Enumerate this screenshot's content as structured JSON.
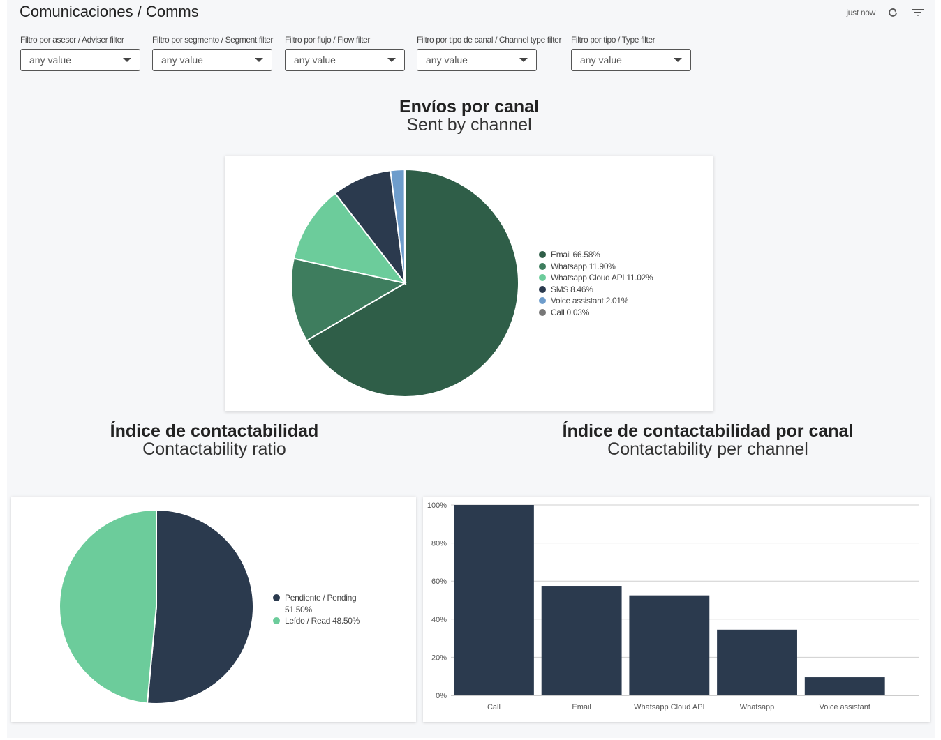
{
  "header": {
    "title": "Comunicaciones / Comms",
    "updated": "just now",
    "refresh_icon": "refresh-icon",
    "filter_icon": "filter-list-icon"
  },
  "filters": [
    {
      "label": "Filtro por asesor / Adviser filter",
      "value": "any value"
    },
    {
      "label": "Filtro por segmento / Segment filter",
      "value": "any value"
    },
    {
      "label": "Filtro por flujo / Flow filter",
      "value": "any value"
    },
    {
      "label": "Filtro por tipo de canal / Channel type filter",
      "value": "any value"
    },
    {
      "label": "Filtro por tipo / Type filter",
      "value": "any value"
    }
  ],
  "sections": {
    "sent": {
      "title": "Envíos por canal",
      "subtitle": "Sent by channel"
    },
    "ratio": {
      "title": "Índice de contactabilidad",
      "subtitle": "Contactability ratio"
    },
    "per_channel": {
      "title": "Índice de contactabilidad por canal",
      "subtitle": "Contactability per channel"
    }
  },
  "chart_data": [
    {
      "type": "pie",
      "slices": [
        {
          "label": "Email 66.58%",
          "value": 66.58,
          "color": "#2f5e48"
        },
        {
          "label": "Whatsapp 11.90%",
          "value": 11.9,
          "color": "#3e7d5e"
        },
        {
          "label": "Whatsapp Cloud API 11.02%",
          "value": 11.02,
          "color": "#6ccc9b"
        },
        {
          "label": "SMS 8.46%",
          "value": 8.46,
          "color": "#2b3a4e"
        },
        {
          "label": "Voice assistant 2.01%",
          "value": 2.01,
          "color": "#6e9dcc"
        },
        {
          "label": "Call 0.03%",
          "value": 0.03,
          "color": "#777777"
        }
      ],
      "legend_position": "right"
    },
    {
      "type": "pie",
      "slices": [
        {
          "label": "Pendiente / Pending 51.50%",
          "value": 51.5,
          "color": "#2b3a4e"
        },
        {
          "label": "Leído / Read 48.50%",
          "value": 48.5,
          "color": "#6ccc9b"
        }
      ],
      "legend_position": "right"
    },
    {
      "type": "bar",
      "categories": [
        "Call",
        "Email",
        "Whatsapp Cloud API",
        "Whatsapp",
        "Voice assistant"
      ],
      "values": [
        100,
        57.5,
        52.5,
        34.5,
        9.5
      ],
      "yticks": [
        "0%",
        "20%",
        "40%",
        "60%",
        "80%",
        "100%"
      ],
      "ylim": [
        0,
        100
      ],
      "color": "#2b3a4e",
      "grid": true
    }
  ]
}
